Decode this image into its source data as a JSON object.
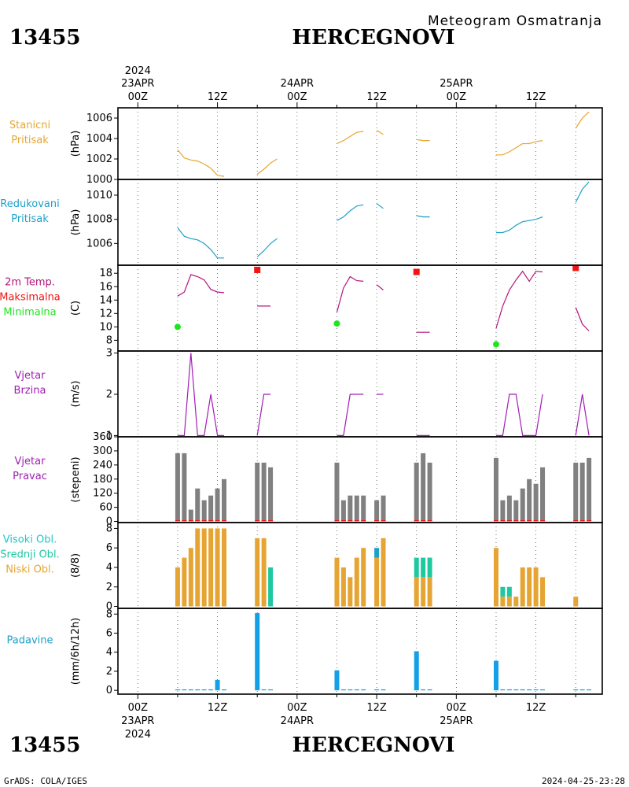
{
  "header": {
    "station_id": "13455",
    "station_name": "HERCEGNOVI",
    "subtitle": "Meteogram Osmatranja",
    "footer_left": "GrADS: COLA/IGES",
    "footer_right": "2024-04-25-23:28"
  },
  "time_axis": {
    "top_labels": [
      {
        "line1": "2024",
        "line2": "23APR",
        "line3": "00Z",
        "t": 0
      },
      {
        "line1": "",
        "line2": "",
        "line3": "12Z",
        "t": 12
      },
      {
        "line1": "",
        "line2": "24APR",
        "line3": "00Z",
        "t": 24
      },
      {
        "line1": "",
        "line2": "",
        "line3": "12Z",
        "t": 36
      },
      {
        "line1": "",
        "line2": "25APR",
        "line3": "00Z",
        "t": 48
      },
      {
        "line1": "",
        "line2": "",
        "line3": "12Z",
        "t": 60
      }
    ],
    "bottom_labels": [
      {
        "line1": "00Z",
        "line2": "23APR",
        "line3": "2024",
        "t": 0
      },
      {
        "line1": "12Z",
        "line2": "",
        "line3": "",
        "t": 12
      },
      {
        "line1": "00Z",
        "line2": "24APR",
        "line3": "",
        "t": 24
      },
      {
        "line1": "12Z",
        "line2": "",
        "line3": "",
        "t": 36
      },
      {
        "line1": "00Z",
        "line2": "25APR",
        "line3": "",
        "t": 48
      },
      {
        "line1": "12Z",
        "line2": "",
        "line3": "",
        "t": 60
      }
    ],
    "range_hours": [
      -3,
      70
    ]
  },
  "colors": {
    "orange": "#e6a532",
    "cyan": "#1ea0c8",
    "magenta": "#b4147f",
    "red": "#f01414",
    "green": "#1ee61e",
    "purple": "#a01eb4",
    "gray": "#808080",
    "teal": "#1ec8a0",
    "blue": "#14a0e6"
  },
  "chart_data": [
    {
      "name": "stanicni",
      "type": "line",
      "labels": [
        "Stanicni",
        "Pritisak"
      ],
      "label_color": "#e6a532",
      "ylabel": "(hPa)",
      "ylim": [
        1000,
        1007
      ],
      "yticks": [
        1000,
        1002,
        1004,
        1006
      ],
      "series": [
        {
          "color": "#e6a532",
          "x": [
            6,
            7,
            8,
            9,
            10,
            11,
            12,
            13
          ],
          "y": [
            1002.9,
            1002.1,
            1001.9,
            1001.8,
            1001.5,
            1001.1,
            1000.4,
            1000.3
          ]
        },
        {
          "color": "#e6a532",
          "x": [
            18,
            19,
            20,
            21
          ],
          "y": [
            1000.5,
            1001.0,
            1001.6,
            1002.0
          ]
        },
        {
          "color": "#e6a532",
          "x": [
            30,
            31,
            32,
            33,
            34
          ],
          "y": [
            1003.5,
            1003.8,
            1004.2,
            1004.6,
            1004.7
          ]
        },
        {
          "color": "#e6a532",
          "x": [
            36,
            37
          ],
          "y": [
            1004.8,
            1004.4
          ]
        },
        {
          "color": "#e6a532",
          "x": [
            42,
            43,
            44
          ],
          "y": [
            1003.9,
            1003.8,
            1003.8
          ]
        },
        {
          "color": "#e6a532",
          "x": [
            54,
            55,
            56,
            57,
            58,
            59,
            60,
            61
          ],
          "y": [
            1002.4,
            1002.4,
            1002.7,
            1003.1,
            1003.5,
            1003.5,
            1003.7,
            1003.8
          ]
        },
        {
          "color": "#e6a532",
          "x": [
            66,
            67,
            68
          ],
          "y": [
            1005.0,
            1006.0,
            1006.6
          ]
        }
      ]
    },
    {
      "name": "redukovani",
      "type": "line",
      "labels": [
        "Redukovani",
        "Pritisak"
      ],
      "label_color": "#1ea0c8",
      "ylabel": "(hPa)",
      "ylim": [
        1004.2,
        1011.3
      ],
      "yticks": [
        1006,
        1008,
        1010
      ],
      "series": [
        {
          "color": "#1ea0c8",
          "x": [
            6,
            7,
            8,
            9,
            10,
            11,
            12,
            13
          ],
          "y": [
            1007.3,
            1006.6,
            1006.4,
            1006.3,
            1006.0,
            1005.5,
            1004.8,
            1004.8
          ]
        },
        {
          "color": "#1ea0c8",
          "x": [
            18,
            19,
            20,
            21
          ],
          "y": [
            1004.9,
            1005.4,
            1006.0,
            1006.4
          ]
        },
        {
          "color": "#1ea0c8",
          "x": [
            30,
            31,
            32,
            33,
            34
          ],
          "y": [
            1007.9,
            1008.2,
            1008.7,
            1009.1,
            1009.2
          ]
        },
        {
          "color": "#1ea0c8",
          "x": [
            36,
            37
          ],
          "y": [
            1009.3,
            1008.9
          ]
        },
        {
          "color": "#1ea0c8",
          "x": [
            42,
            43,
            44
          ],
          "y": [
            1008.3,
            1008.2,
            1008.2
          ]
        },
        {
          "color": "#1ea0c8",
          "x": [
            54,
            55,
            56,
            57,
            58,
            59,
            60,
            61
          ],
          "y": [
            1006.9,
            1006.9,
            1007.1,
            1007.5,
            1007.8,
            1007.9,
            1008.0,
            1008.2
          ]
        },
        {
          "color": "#1ea0c8",
          "x": [
            66,
            67,
            68
          ],
          "y": [
            1009.4,
            1010.5,
            1011.1
          ]
        }
      ]
    },
    {
      "name": "temperatura",
      "type": "line",
      "labels": [
        "2m Temp.",
        "Maksimalna",
        "Minimalna"
      ],
      "label_colors": [
        "#b4147f",
        "#f01414",
        "#1ee61e"
      ],
      "ylabel": "(C)",
      "ylim": [
        6.4,
        19.2
      ],
      "yticks": [
        8,
        10,
        12,
        14,
        16,
        18
      ],
      "series": [
        {
          "color": "#b4147f",
          "x": [
            6,
            7,
            8,
            9,
            10,
            11,
            12,
            13
          ],
          "y": [
            14.6,
            15.2,
            17.8,
            17.5,
            17.0,
            15.6,
            15.2,
            15.1
          ]
        },
        {
          "color": "#b4147f",
          "x": [
            18,
            19,
            20
          ],
          "y": [
            13.1,
            13.1,
            13.1
          ]
        },
        {
          "color": "#b4147f",
          "x": [
            30,
            31,
            32,
            33,
            34
          ],
          "y": [
            12.2,
            15.8,
            17.5,
            16.9,
            16.8
          ]
        },
        {
          "color": "#b4147f",
          "x": [
            36,
            37
          ],
          "y": [
            16.3,
            15.5
          ]
        },
        {
          "color": "#b4147f",
          "x": [
            42,
            43,
            44
          ],
          "y": [
            9.2,
            9.2,
            9.2
          ]
        },
        {
          "color": "#b4147f",
          "x": [
            54,
            55,
            56,
            57,
            58,
            59,
            60,
            61
          ],
          "y": [
            9.8,
            13.1,
            15.5,
            17.0,
            18.3,
            16.8,
            18.3,
            18.2
          ]
        },
        {
          "color": "#b4147f",
          "x": [
            66,
            67,
            68
          ],
          "y": [
            12.9,
            10.4,
            9.4
          ]
        }
      ],
      "max_points": {
        "color": "#f01414",
        "x": [
          18,
          42,
          66
        ],
        "y": [
          18.5,
          18.2,
          18.8
        ]
      },
      "min_points": {
        "color": "#1ee61e",
        "x": [
          6,
          30,
          54
        ],
        "y": [
          10.0,
          10.5,
          7.4
        ]
      }
    },
    {
      "name": "vjetar_brzina",
      "type": "line",
      "labels": [
        "Vjetar",
        "Brzina"
      ],
      "label_color": "#a01eb4",
      "ylabel": "(m/s)",
      "ylim": [
        0.97,
        3.05
      ],
      "yticks": [
        1,
        2,
        3
      ],
      "series": [
        {
          "color": "#a01eb4",
          "x": [
            6,
            7,
            8,
            9,
            10,
            11,
            12,
            13
          ],
          "y": [
            1,
            1,
            3,
            1,
            1,
            2,
            1,
            1
          ]
        },
        {
          "color": "#a01eb4",
          "x": [
            18,
            19,
            20
          ],
          "y": [
            1,
            2,
            2
          ]
        },
        {
          "color": "#a01eb4",
          "x": [
            30,
            31,
            32,
            33,
            34
          ],
          "y": [
            1,
            1,
            2,
            2,
            2
          ]
        },
        {
          "color": "#a01eb4",
          "x": [
            36,
            37
          ],
          "y": [
            2,
            2
          ]
        },
        {
          "color": "#a01eb4",
          "x": [
            42,
            43,
            44
          ],
          "y": [
            1,
            1,
            1
          ]
        },
        {
          "color": "#a01eb4",
          "x": [
            54,
            55,
            56,
            57,
            58,
            59,
            60,
            61
          ],
          "y": [
            1,
            1,
            2,
            2,
            1,
            1,
            1,
            2
          ]
        },
        {
          "color": "#a01eb4",
          "x": [
            66,
            67,
            68
          ],
          "y": [
            1,
            2,
            1
          ]
        }
      ]
    },
    {
      "name": "vjetar_pravac",
      "type": "bar",
      "labels": [
        "Vjetar",
        "Pravac"
      ],
      "label_color": "#a01eb4",
      "ylabel": "(stepeni)",
      "ylim": [
        -5,
        360
      ],
      "yticks": [
        0,
        60,
        120,
        180,
        240,
        300,
        360
      ],
      "ytick_labels": [
        "0",
        "60",
        "120",
        "180",
        "240",
        "300",
        "360"
      ],
      "bar_color": "#808080",
      "x": [
        6,
        7,
        8,
        9,
        10,
        11,
        12,
        13,
        18,
        19,
        20,
        30,
        31,
        32,
        33,
        34,
        36,
        37,
        42,
        43,
        44,
        54,
        55,
        56,
        57,
        58,
        59,
        60,
        61,
        66,
        67,
        68
      ],
      "values": [
        290,
        290,
        50,
        140,
        90,
        110,
        140,
        180,
        250,
        250,
        230,
        250,
        90,
        110,
        110,
        110,
        90,
        110,
        250,
        290,
        250,
        270,
        90,
        110,
        90,
        140,
        180,
        160,
        230,
        250,
        250,
        270
      ]
    },
    {
      "name": "oblacnost",
      "type": "bar",
      "labels": [
        "Visoki Obl.",
        "Srednji Obl.",
        "Niski Obl."
      ],
      "label_colors": [
        "#1ec8c8",
        "#1ec8a0",
        "#e6a532"
      ],
      "ylabel": "(8/8)",
      "ylim": [
        -0.2,
        8.6
      ],
      "yticks": [
        0,
        2,
        4,
        6,
        8
      ],
      "series": [
        {
          "name": "Niski Obl.",
          "color": "#e6a532",
          "x": [
            6,
            7,
            8,
            9,
            10,
            11,
            12,
            13,
            18,
            19,
            20,
            30,
            31,
            32,
            33,
            34,
            36,
            37,
            42,
            43,
            44,
            54,
            55,
            56,
            57,
            58,
            59,
            60,
            61,
            66,
            67,
            68
          ],
          "values": [
            4,
            5,
            6,
            8,
            8,
            8,
            8,
            8,
            7,
            7,
            0,
            5,
            4,
            3,
            5,
            6,
            5,
            7,
            3,
            3,
            3,
            6,
            1,
            1,
            1,
            4,
            4,
            4,
            3,
            1,
            0,
            0
          ]
        },
        {
          "name": "Srednji Obl.",
          "color": "#1ec8a0",
          "x": [
            20,
            42,
            43,
            44,
            55,
            56,
            57
          ],
          "values": [
            4,
            2,
            2,
            2,
            1,
            1,
            0
          ]
        },
        {
          "name": "Visoki Obl.",
          "color": "#1ea0c8",
          "x": [
            36
          ],
          "values": [
            1
          ]
        }
      ]
    },
    {
      "name": "padavine",
      "type": "bar",
      "labels": [
        "Padavine"
      ],
      "label_color": "#1ea0c8",
      "ylabel": "(mm/6h/12h)",
      "ylim": [
        -0.4,
        8.6
      ],
      "yticks": [
        0,
        2,
        4,
        6,
        8
      ],
      "bar_color": "#14a0e6",
      "x": [
        6,
        7,
        8,
        9,
        10,
        11,
        12,
        13,
        18,
        19,
        20,
        30,
        31,
        32,
        33,
        34,
        36,
        37,
        42,
        43,
        44,
        54,
        55,
        56,
        57,
        58,
        59,
        60,
        61,
        66,
        67,
        68
      ],
      "values": [
        0.1,
        0.1,
        0.1,
        0.1,
        0.1,
        0.1,
        1.1,
        0.1,
        8.1,
        0.1,
        0.1,
        2.1,
        0.1,
        0.1,
        0.1,
        0.1,
        0.1,
        0.1,
        4.1,
        0.1,
        0.1,
        3.1,
        0.1,
        0.1,
        0.1,
        0.1,
        0.1,
        0.1,
        0.1,
        0.1,
        0.1,
        0.1
      ]
    }
  ]
}
